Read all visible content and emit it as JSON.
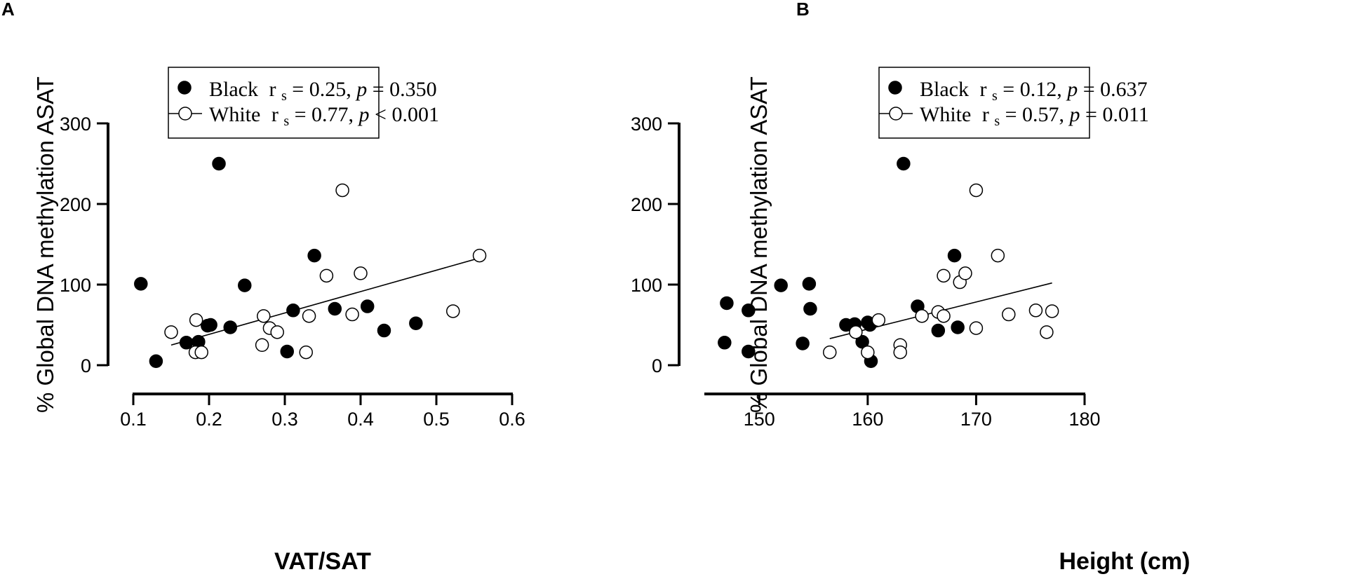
{
  "chart_data": [
    {
      "panel": "A",
      "type": "scatter",
      "xlabel": "VAT/SAT",
      "ylabel": "% Global DNA methylation ASAT",
      "xlim": [
        0.1,
        0.6
      ],
      "ylim": [
        0,
        300
      ],
      "xticks": [
        0.1,
        0.2,
        0.3,
        0.4,
        0.5,
        0.6
      ],
      "yticks": [
        0,
        100,
        200,
        300
      ],
      "xtick_labels": [
        "0.1",
        "0.2",
        "0.3",
        "0.4",
        "0.5",
        "0.6"
      ],
      "ytick_labels": [
        "0",
        "100",
        "200",
        "300"
      ],
      "legend": [
        {
          "marker": "filled",
          "group": "Black",
          "r": "r",
          "s": "s",
          "eq1": " = 0.25, ",
          "p": "p",
          "eq2": " = 0.350"
        },
        {
          "marker": "open",
          "group": "White",
          "r": "r",
          "s": "s",
          "eq1": " = 0.77, ",
          "p": "p",
          "eq2": " < 0.001"
        }
      ],
      "series": [
        {
          "name": "Black",
          "marker": "filled",
          "points": [
            [
              0.11,
              101
            ],
            [
              0.13,
              5
            ],
            [
              0.17,
              28
            ],
            [
              0.186,
              29
            ],
            [
              0.198,
              49
            ],
            [
              0.202,
              50
            ],
            [
              0.213,
              250
            ],
            [
              0.228,
              47
            ],
            [
              0.247,
              99
            ],
            [
              0.303,
              17
            ],
            [
              0.311,
              68
            ],
            [
              0.339,
              136
            ],
            [
              0.366,
              70
            ],
            [
              0.409,
              73
            ],
            [
              0.431,
              43
            ],
            [
              0.473,
              52
            ]
          ]
        },
        {
          "name": "White",
          "marker": "open",
          "points": [
            [
              0.15,
              41
            ],
            [
              0.182,
              16
            ],
            [
              0.183,
              56
            ],
            [
              0.19,
              16
            ],
            [
              0.27,
              25
            ],
            [
              0.272,
              61
            ],
            [
              0.28,
              46
            ],
            [
              0.29,
              41
            ],
            [
              0.328,
              16
            ],
            [
              0.332,
              61
            ],
            [
              0.355,
              111
            ],
            [
              0.376,
              217
            ],
            [
              0.389,
              63
            ],
            [
              0.4,
              114
            ],
            [
              0.522,
              67
            ],
            [
              0.557,
              136
            ]
          ]
        }
      ],
      "regression": {
        "x": [
          0.15,
          0.557
        ],
        "y": [
          25,
          133
        ]
      }
    },
    {
      "panel": "B",
      "type": "scatter",
      "xlabel": "Height (cm)",
      "ylabel": "% Global DNA methylation ASAT",
      "xlim": [
        145,
        180
      ],
      "ylim": [
        0,
        300
      ],
      "xticks": [
        150,
        160,
        170,
        180
      ],
      "yticks": [
        0,
        100,
        200,
        300
      ],
      "xtick_labels": [
        "150",
        "160",
        "170",
        "180"
      ],
      "ytick_labels": [
        "0",
        "100",
        "200",
        "300"
      ],
      "legend": [
        {
          "marker": "filled",
          "group": "Black",
          "r": "r",
          "s": "s",
          "eq1": " = 0.12, ",
          "p": "p",
          "eq2": " = 0.637"
        },
        {
          "marker": "open",
          "group": "White",
          "r": "r",
          "s": "s",
          "eq1": " = 0.57, ",
          "p": "p",
          "eq2": " = 0.011"
        }
      ],
      "series": [
        {
          "name": "Black",
          "marker": "filled",
          "points": [
            [
              146.8,
              28
            ],
            [
              147,
              77
            ],
            [
              149,
              68
            ],
            [
              149,
              17
            ],
            [
              152,
              99
            ],
            [
              154,
              27
            ],
            [
              154.6,
              101
            ],
            [
              154.7,
              70
            ],
            [
              158,
              50
            ],
            [
              158.8,
              51
            ],
            [
              159.5,
              29
            ],
            [
              160,
              53
            ],
            [
              160.2,
              50
            ],
            [
              160.3,
              5
            ],
            [
              163.3,
              250
            ],
            [
              164.6,
              73
            ],
            [
              166.5,
              43
            ],
            [
              168,
              136
            ],
            [
              168.3,
              47
            ]
          ]
        },
        {
          "name": "White",
          "marker": "open",
          "points": [
            [
              156.5,
              16
            ],
            [
              158.9,
              41
            ],
            [
              160,
              16
            ],
            [
              161,
              56
            ],
            [
              163,
              25
            ],
            [
              163,
              16
            ],
            [
              165,
              61
            ],
            [
              166.5,
              66
            ],
            [
              167,
              111
            ],
            [
              167,
              61
            ],
            [
              168.5,
              103
            ],
            [
              169,
              114
            ],
            [
              170,
              217
            ],
            [
              170,
              46
            ],
            [
              172,
              136
            ],
            [
              173,
              63
            ],
            [
              175.5,
              68
            ],
            [
              176.5,
              41
            ],
            [
              177,
              67
            ]
          ]
        }
      ],
      "regression": {
        "x": [
          156.5,
          177
        ],
        "y": [
          33,
          102
        ]
      }
    }
  ]
}
